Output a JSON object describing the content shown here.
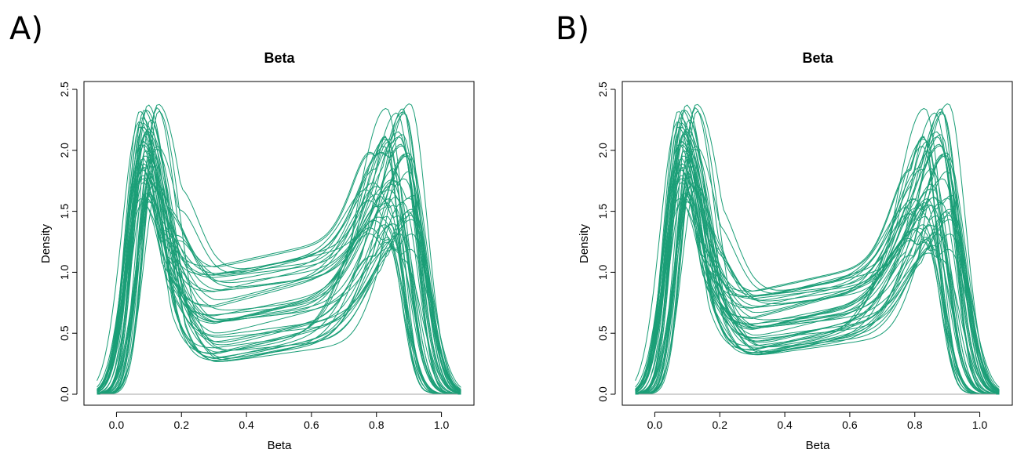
{
  "chart_data": [
    {
      "type": "line",
      "panel_label": "A)",
      "title": "Beta",
      "xlabel": "Beta",
      "ylabel": "Density",
      "xlim": [
        -0.1,
        1.1
      ],
      "ylim": [
        0.0,
        2.5
      ],
      "xticks": [
        "0.0",
        "0.2",
        "0.4",
        "0.6",
        "0.8",
        "1.0"
      ],
      "yticks": [
        "0.0",
        "0.5",
        "1.0",
        "1.5",
        "2.0",
        "2.5"
      ],
      "line_color": "#1b9e77",
      "baseline_color": "#a6a6a6",
      "series_count": 48,
      "peak_low": {
        "x_range": [
          0.07,
          0.13
        ],
        "y_range": [
          1.55,
          2.39
        ]
      },
      "trough": {
        "x_range": [
          0.25,
          0.4
        ],
        "y_range": [
          0.24,
          1.1
        ]
      },
      "peak_high": {
        "x_range": [
          0.82,
          0.92
        ],
        "y_range": [
          1.1,
          2.4
        ]
      }
    },
    {
      "type": "line",
      "panel_label": "B)",
      "title": "Beta",
      "xlabel": "Beta",
      "ylabel": "Density",
      "xlim": [
        -0.1,
        1.1
      ],
      "ylim": [
        0.0,
        2.5
      ],
      "xticks": [
        "0.0",
        "0.2",
        "0.4",
        "0.6",
        "0.8",
        "1.0"
      ],
      "yticks": [
        "0.0",
        "0.5",
        "1.0",
        "1.5",
        "2.0",
        "2.5"
      ],
      "line_color": "#1b9e77",
      "baseline_color": "#a6a6a6",
      "series_count": 48,
      "peak_low": {
        "x_range": [
          0.07,
          0.13
        ],
        "y_range": [
          1.55,
          2.39
        ]
      },
      "trough": {
        "x_range": [
          0.25,
          0.4
        ],
        "y_range": [
          0.3,
          0.88
        ]
      },
      "peak_high": {
        "x_range": [
          0.82,
          0.92
        ],
        "y_range": [
          1.1,
          2.4
        ]
      }
    }
  ]
}
